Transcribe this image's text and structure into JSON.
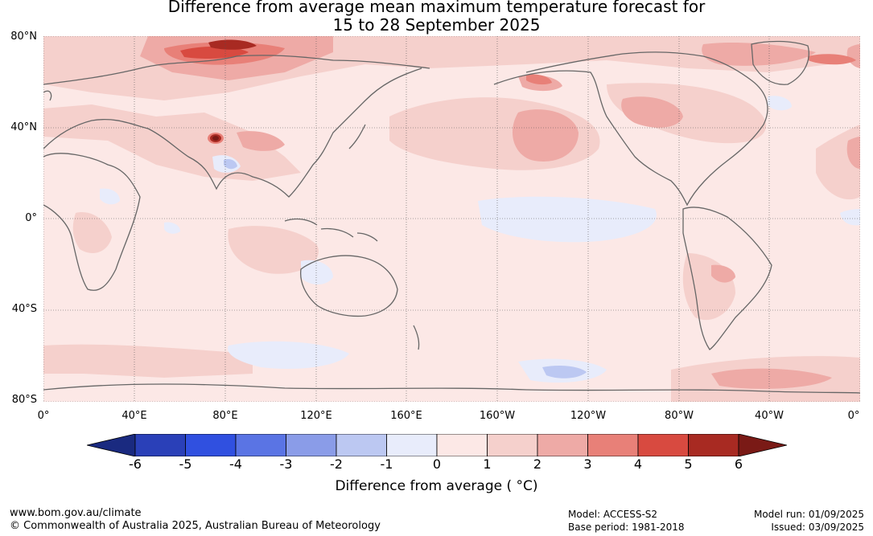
{
  "title_line1": "Difference from average mean maximum temperature forecast for",
  "title_line2": "15 to 28 September 2025",
  "lat_labels": [
    "80°N",
    "40°N",
    "0°",
    "40°S",
    "80°S"
  ],
  "lon_labels": [
    "0°",
    "40°E",
    "80°E",
    "120°E",
    "160°E",
    "160°W",
    "120°W",
    "80°W",
    "40°W",
    "0°"
  ],
  "legend": {
    "ticks": [
      "-6",
      "-5",
      "-4",
      "-3",
      "-2",
      "-1",
      "0",
      "1",
      "2",
      "3",
      "4",
      "5",
      "6"
    ],
    "colors": [
      "#1a2a80",
      "#2a40b8",
      "#3050e0",
      "#5a74e4",
      "#8a9ce8",
      "#bcc8f2",
      "#e8ecfb",
      "#fce8e6",
      "#f5d0cc",
      "#eeaaa6",
      "#e88078",
      "#d84a40",
      "#a82a22",
      "#7a1a16"
    ],
    "title": "Difference from average ( °C)"
  },
  "footer": {
    "website": "www.bom.gov.au/climate",
    "copyright": "© Commonwealth of Australia 2025, Australian Bureau of Meteorology",
    "model": "Model: ACCESS-S2",
    "base_period": "Base period: 1981-2018",
    "model_run": "Model run: 01/09/2025",
    "issued": "Issued: 03/09/2025"
  }
}
